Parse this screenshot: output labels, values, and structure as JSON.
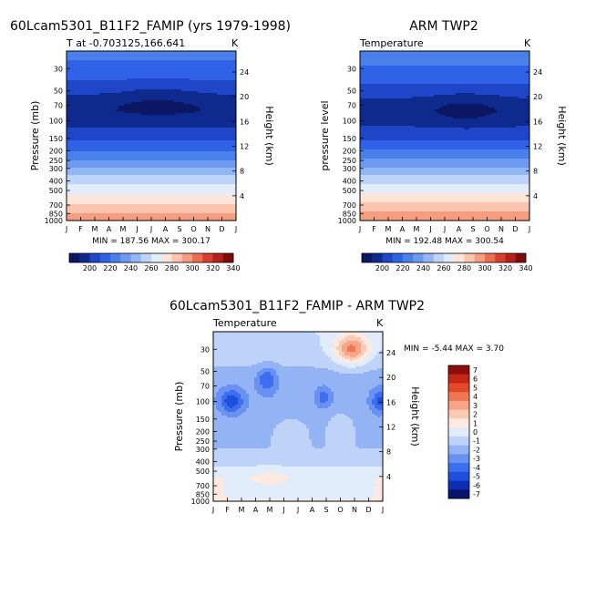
{
  "colors": {
    "ramp_abs": [
      "#0b1763",
      "#0f2a8f",
      "#1f45c9",
      "#2f62e6",
      "#4b7fec",
      "#6d9af0",
      "#92b6f4",
      "#bdd3f8",
      "#e2ecfb",
      "#fde4d8",
      "#fac4ae",
      "#f59d80",
      "#ec6d4f",
      "#d8402d",
      "#b5201c",
      "#7f0b0b"
    ],
    "ramp_diff": [
      "#08156a",
      "#0c2db4",
      "#1f4fdc",
      "#3d6ef0",
      "#6891f2",
      "#93b3f5",
      "#bfd3f8",
      "#e1ecfb",
      "#fde9df",
      "#fbcab5",
      "#f8a486",
      "#f07756",
      "#e4482b",
      "#c52616",
      "#8e0e0e"
    ]
  },
  "chart_data": [
    {
      "type": "heatmap",
      "title": "60Lcam5301_B11F2_FAMIP (yrs 1979-1998)",
      "subtitle_left": "T at -0.703125,166.641",
      "subtitle_right": "K",
      "ylabel": "Pressure (mb)",
      "ylabel_right": "Height (km)",
      "xticks": [
        "J",
        "F",
        "M",
        "A",
        "M",
        "J",
        "J",
        "A",
        "S",
        "O",
        "N",
        "D",
        "J"
      ],
      "yticks": [
        "30",
        "50",
        "70",
        "100",
        "150",
        "200",
        "250",
        "300",
        "400",
        "500",
        "700",
        "850",
        "1000"
      ],
      "height_ticks": [
        "24",
        "20",
        "16",
        "12",
        "8",
        "4"
      ],
      "ylim": [
        1000,
        20
      ],
      "min_max": "MIN = 187.56  MAX = 300.17",
      "min": 187.56,
      "max": 300.17,
      "profile": {
        "p": [
          20,
          30,
          40,
          50,
          60,
          70,
          80,
          100,
          120,
          150,
          200,
          250,
          300,
          400,
          500,
          700,
          850,
          1000
        ],
        "t": [
          224,
          216,
          210,
          203,
          197,
          192,
          191,
          195,
          201,
          207,
          220,
          231,
          241,
          256,
          266,
          281,
          291,
          299
        ]
      },
      "seasonal_dip": {
        "p": 60,
        "amp": 6,
        "center_month": 6.5
      }
    },
    {
      "type": "heatmap",
      "title": "ARM TWP2",
      "subtitle_left": "Temperature",
      "subtitle_right": "K",
      "ylabel": "pressure level",
      "ylabel_right": "Height (km)",
      "xticks": [
        "J",
        "F",
        "M",
        "A",
        "M",
        "J",
        "J",
        "A",
        "S",
        "O",
        "N",
        "D",
        "J"
      ],
      "yticks": [
        "30",
        "50",
        "70",
        "100",
        "150",
        "200",
        "250",
        "300",
        "400",
        "500",
        "700",
        "850",
        "1000"
      ],
      "height_ticks": [
        "24",
        "20",
        "16",
        "12",
        "8",
        "4"
      ],
      "ylim": [
        1000,
        20
      ],
      "min_max": "MIN = 192.48  MAX = 300.54",
      "min": 192.48,
      "max": 300.54,
      "profile": {
        "p": [
          20,
          30,
          40,
          50,
          60,
          70,
          80,
          100,
          120,
          150,
          200,
          250,
          300,
          400,
          500,
          700,
          850,
          1000
        ],
        "t": [
          226,
          219,
          212,
          206,
          200,
          196,
          194,
          196,
          202,
          208,
          221,
          232,
          242,
          257,
          267,
          282,
          292,
          300
        ]
      },
      "seasonal_dip": {
        "p": 75,
        "amp": 8,
        "center_month": 7.5
      }
    },
    {
      "type": "heatmap",
      "title": "60Lcam5301_B11F2_FAMIP - ARM TWP2",
      "subtitle_left": "Temperature",
      "subtitle_right": "K",
      "ylabel": "Pressure (mb)",
      "ylabel_right": "Height (km)",
      "xticks": [
        "J",
        "F",
        "M",
        "A",
        "M",
        "J",
        "J",
        "A",
        "S",
        "O",
        "N",
        "D",
        "J"
      ],
      "yticks": [
        "30",
        "50",
        "70",
        "100",
        "150",
        "200",
        "250",
        "300",
        "400",
        "500",
        "700",
        "850",
        "1000"
      ],
      "height_ticks": [
        "24",
        "20",
        "16",
        "12",
        "8",
        "4"
      ],
      "ylim": [
        1000,
        20
      ],
      "min_max": "MIN =   -5.44 MAX =     3.70",
      "min": -5.44,
      "max": 3.7,
      "base_profile": {
        "p": [
          20,
          30,
          50,
          70,
          100,
          150,
          200,
          300,
          400,
          500,
          600,
          700,
          850,
          1000
        ],
        "d": [
          -1.0,
          -1.2,
          -2.2,
          -2.6,
          -2.8,
          -2.4,
          -2.2,
          -2.0,
          -1.5,
          -0.6,
          -0.3,
          -0.7,
          -0.7,
          0.2
        ]
      },
      "anomalies": [
        {
          "month": 9.8,
          "p": 30,
          "amp": 4.5,
          "dm": 1.2,
          "dlp": 0.12
        },
        {
          "month": 1.3,
          "p": 100,
          "amp": -3.0,
          "dm": 0.8,
          "dlp": 0.08
        },
        {
          "month": 3.8,
          "p": 60,
          "amp": -2.5,
          "dm": 0.7,
          "dlp": 0.08
        },
        {
          "month": 7.8,
          "p": 90,
          "amp": -1.8,
          "dm": 0.5,
          "dlp": 0.05
        },
        {
          "month": 11.8,
          "p": 100,
          "amp": -2.5,
          "dm": 0.6,
          "dlp": 0.08
        },
        {
          "month": 9.0,
          "p": 180,
          "amp": 1.2,
          "dm": 0.8,
          "dlp": 0.12
        },
        {
          "month": 5.5,
          "p": 200,
          "amp": 1.0,
          "dm": 1.0,
          "dlp": 0.1
        },
        {
          "month": 0.3,
          "p": 800,
          "amp": 1.2,
          "dm": 0.7,
          "dlp": 0.1
        },
        {
          "month": 12.0,
          "p": 800,
          "amp": 1.5,
          "dm": 0.6,
          "dlp": 0.1
        },
        {
          "month": 4.0,
          "p": 600,
          "amp": 0.8,
          "dm": 1.5,
          "dlp": 0.06
        }
      ]
    }
  ],
  "colorbars": [
    {
      "labels": [
        "200",
        "220",
        "240",
        "260",
        "280",
        "300",
        "320",
        "340"
      ]
    },
    {
      "labels": [
        "200",
        "220",
        "240",
        "260",
        "280",
        "300",
        "320",
        "340"
      ]
    },
    {
      "labels": [
        "7",
        "6",
        "5",
        "4",
        "3",
        "2",
        "1",
        "0",
        "-1",
        "-2",
        "-3",
        "-4",
        "-5",
        "-6",
        "-7"
      ]
    }
  ]
}
